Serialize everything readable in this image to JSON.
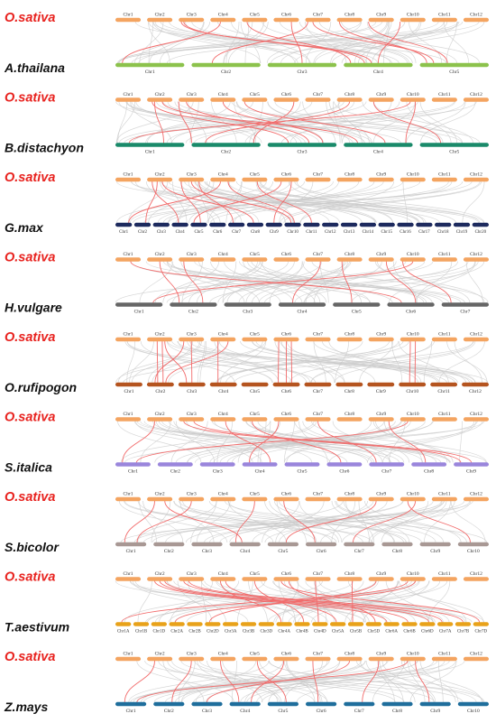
{
  "colors": {
    "reference_label": "#e8231f",
    "species_label": "#111111",
    "reference_bar": "#f4a460",
    "gray_links": "#c9c9c9",
    "red_links": "#f26a6a"
  },
  "panels": [
    {
      "top": {
        "label": "O.sativa",
        "chromosomes": [
          "Chr1",
          "Chr2",
          "Chr3",
          "Chr4",
          "Chr5",
          "Chr6",
          "Chr7",
          "Chr8",
          "Chr9",
          "Chr10",
          "Chr11",
          "Chr12"
        ]
      },
      "bottom": {
        "label": "A.thailana",
        "color": "#8cc24c",
        "chromosomes": [
          "Chr1",
          "Chr2",
          "Chr3",
          "Chr4",
          "Chr5"
        ]
      },
      "links": [
        [
          2,
          1,
          3,
          4
        ],
        [
          2,
          2,
          3,
          3
        ],
        [
          3,
          4,
          0,
          1
        ],
        [
          6,
          1,
          1,
          3
        ],
        [
          4,
          2,
          3,
          1
        ],
        [
          7,
          1,
          4,
          1
        ],
        [
          8,
          0,
          4,
          4
        ],
        [
          5,
          7,
          2,
          5
        ],
        [
          6,
          3,
          4,
          2
        ],
        [
          9,
          0,
          3,
          5
        ]
      ]
    },
    {
      "top": {
        "label": "O.sativa",
        "chromosomes": [
          "Chr1",
          "Chr2",
          "Chr3",
          "Chr4",
          "Chr5",
          "Chr6",
          "Chr7",
          "Chr8",
          "Chr9",
          "Chr10",
          "Chr11",
          "Chr12"
        ]
      },
      "bottom": {
        "label": "B.distachyon",
        "color": "#1a8a6a",
        "chromosomes": [
          "Chr1",
          "Chr2",
          "Chr3",
          "Chr4",
          "Chr5"
        ]
      },
      "links": [
        [
          1,
          2,
          2,
          3
        ],
        [
          1,
          6,
          3,
          2
        ],
        [
          2,
          0,
          1,
          0
        ],
        [
          3,
          5,
          2,
          8
        ],
        [
          4,
          1,
          3,
          6
        ],
        [
          5,
          8,
          1,
          9
        ],
        [
          9,
          4,
          0,
          2
        ],
        [
          9,
          6,
          3,
          9
        ],
        [
          2,
          3,
          2,
          6
        ],
        [
          8,
          2,
          4,
          3
        ],
        [
          7,
          5,
          1,
          2
        ],
        [
          1,
          3,
          0,
          7
        ]
      ]
    },
    {
      "top": {
        "label": "O.sativa",
        "chromosomes": [
          "Chr1",
          "Chr2",
          "Chr3",
          "Chr4",
          "Chr5",
          "Chr6",
          "Chr7",
          "Chr8",
          "Chr9",
          "Chr10",
          "Chr11",
          "Chr12"
        ]
      },
      "bottom": {
        "label": "G.max",
        "color": "#1d2a5e",
        "chromosomes": [
          "Chr1",
          "Chr2",
          "Chr3",
          "Chr4",
          "Chr5",
          "Chr6",
          "Chr7",
          "Chr8",
          "Chr9",
          "Chr10",
          "Chr11",
          "Chr12",
          "Chr13",
          "Chr14",
          "Chr15",
          "Chr16",
          "Chr17",
          "Chr18",
          "Chr19",
          "Chr20"
        ]
      },
      "links": [
        [
          1,
          2,
          3,
          4
        ],
        [
          1,
          6,
          7,
          4
        ],
        [
          2,
          1,
          4,
          6
        ],
        [
          2,
          5,
          9,
          4
        ],
        [
          3,
          4,
          0,
          8
        ],
        [
          3,
          7,
          9,
          6
        ],
        [
          5,
          3,
          4,
          2
        ],
        [
          5,
          7,
          8,
          5
        ],
        [
          4,
          6,
          10,
          5
        ],
        [
          1,
          4,
          1,
          7
        ],
        [
          2,
          8,
          6,
          3
        ]
      ]
    },
    {
      "top": {
        "label": "O.sativa",
        "chromosomes": [
          "Chr1",
          "Chr2",
          "Chr3",
          "Chr4",
          "Chr5",
          "Chr6",
          "Chr7",
          "Chr8",
          "Chr9",
          "Chr10",
          "Chr11",
          "Chr12"
        ]
      },
      "bottom": {
        "label": "H.vulgare",
        "color": "#666666",
        "chromosomes": [
          "Chr1",
          "Chr2",
          "Chr3",
          "Chr4",
          "Chr5",
          "Chr6",
          "Chr7"
        ]
      },
      "links": [
        [
          1,
          5,
          1,
          2
        ],
        [
          2,
          2,
          1,
          7
        ],
        [
          9,
          5,
          0,
          8
        ],
        [
          8,
          7,
          5,
          6
        ],
        [
          7,
          2,
          4,
          4
        ],
        [
          6,
          6,
          3,
          3
        ],
        [
          9,
          1,
          6,
          2
        ],
        [
          0,
          6,
          5,
          3
        ]
      ]
    },
    {
      "top": {
        "label": "O.sativa",
        "chromosomes": [
          "Chr1",
          "Chr2",
          "Chr3",
          "Chr4",
          "Chr5",
          "Chr6",
          "Chr7",
          "Chr8",
          "Chr9",
          "Chr10",
          "Chr11",
          "Chr12"
        ]
      },
      "bottom": {
        "label": "O.rufipogon",
        "color": "#b5541f",
        "chromosomes": [
          "Chr1",
          "Chr2",
          "Chr3",
          "Chr4",
          "Chr5",
          "Chr6",
          "Chr7",
          "Chr8",
          "Chr9",
          "Chr10",
          "Chr11",
          "Chr12"
        ]
      },
      "links": [
        [
          1,
          4,
          1,
          4
        ],
        [
          1,
          6,
          1,
          6
        ],
        [
          1,
          7,
          2,
          3
        ],
        [
          2,
          2,
          1,
          3
        ],
        [
          2,
          5,
          2,
          5
        ],
        [
          3,
          3,
          3,
          3
        ],
        [
          3,
          7,
          1,
          7
        ],
        [
          5,
          2,
          5,
          2
        ],
        [
          5,
          5,
          5,
          5
        ],
        [
          5,
          7,
          5,
          7
        ],
        [
          9,
          4,
          9,
          4
        ],
        [
          9,
          6,
          9,
          6
        ]
      ]
    },
    {
      "top": {
        "label": "O.sativa",
        "chromosomes": [
          "Chr1",
          "Chr2",
          "Chr3",
          "Chr4",
          "Chr5",
          "Chr6",
          "Chr7",
          "Chr8",
          "Chr9",
          "Chr10",
          "Chr11",
          "Chr12"
        ]
      },
      "bottom": {
        "label": "S.italica",
        "color": "#9a86dc",
        "chromosomes": [
          "Chr1",
          "Chr2",
          "Chr3",
          "Chr4",
          "Chr5",
          "Chr6",
          "Chr7",
          "Chr8",
          "Chr9"
        ]
      },
      "links": [
        [
          1,
          3,
          0,
          2
        ],
        [
          2,
          6,
          8,
          5
        ],
        [
          3,
          6,
          3,
          8
        ],
        [
          4,
          4,
          5,
          4
        ],
        [
          5,
          2,
          3,
          2
        ],
        [
          9,
          3,
          0,
          6
        ],
        [
          6,
          5,
          6,
          2
        ],
        [
          8,
          8,
          7,
          4
        ],
        [
          2,
          2,
          8,
          2
        ]
      ]
    },
    {
      "top": {
        "label": "O.sativa",
        "chromosomes": [
          "Chr1",
          "Chr2",
          "Chr3",
          "Chr4",
          "Chr5",
          "Chr6",
          "Chr7",
          "Chr8",
          "Chr9",
          "Chr10",
          "Chr11",
          "Chr12"
        ]
      },
      "bottom": {
        "label": "S.bicolor",
        "color": "#a89894",
        "chromosomes": [
          "Chr1",
          "Chr2",
          "Chr3",
          "Chr4",
          "Chr5",
          "Chr6",
          "Chr7",
          "Chr8",
          "Chr9",
          "Chr10"
        ]
      },
      "links": [
        [
          1,
          3,
          0,
          3
        ],
        [
          1,
          7,
          3,
          4
        ],
        [
          2,
          5,
          0,
          7
        ],
        [
          4,
          5,
          3,
          2
        ],
        [
          9,
          3,
          9,
          4
        ],
        [
          9,
          6,
          6,
          3
        ],
        [
          8,
          3,
          4,
          6
        ],
        [
          5,
          4,
          5,
          3
        ]
      ]
    },
    {
      "top": {
        "label": "O.sativa",
        "chromosomes": [
          "Chr1",
          "Chr2",
          "Chr3",
          "Chr4",
          "Chr5",
          "Chr6",
          "Chr7",
          "Chr8",
          "Chr9",
          "Chr10",
          "Chr11",
          "Chr12"
        ]
      },
      "bottom": {
        "label": "T.aestivum",
        "color": "#e8a21a",
        "chromosomes": [
          "Chr1A",
          "Chr1B",
          "Chr1D",
          "Chr2A",
          "Chr2B",
          "Chr2D",
          "Chr3A",
          "Chr3B",
          "Chr3D",
          "Chr4A",
          "Chr4B",
          "Chr4D",
          "Chr5A",
          "Chr5B",
          "Chr5D",
          "Chr6A",
          "Chr6B",
          "Chr6D",
          "Chr7A",
          "Chr7B",
          "Chr7D"
        ]
      },
      "links": [
        [
          1,
          3,
          15,
          2
        ],
        [
          1,
          5,
          16,
          4
        ],
        [
          1,
          7,
          17,
          6
        ],
        [
          2,
          2,
          18,
          3
        ],
        [
          2,
          4,
          19,
          5
        ],
        [
          3,
          4,
          9,
          3
        ],
        [
          3,
          6,
          12,
          4
        ],
        [
          5,
          3,
          20,
          4
        ],
        [
          5,
          6,
          14,
          6
        ],
        [
          9,
          3,
          0,
          4
        ],
        [
          9,
          6,
          3,
          4
        ],
        [
          6,
          4,
          11,
          4
        ],
        [
          7,
          6,
          13,
          3
        ],
        [
          4,
          5,
          10,
          6
        ],
        [
          8,
          3,
          5,
          3
        ]
      ]
    },
    {
      "top": {
        "label": "O.sativa",
        "chromosomes": [
          "Chr1",
          "Chr2",
          "Chr3",
          "Chr4",
          "Chr5",
          "Chr6",
          "Chr7",
          "Chr8",
          "Chr9",
          "Chr10",
          "Chr11",
          "Chr12"
        ]
      },
      "bottom": {
        "label": "Z.mays",
        "color": "#1f6e9c",
        "chromosomes": [
          "Chr1",
          "Chr2",
          "Chr3",
          "Chr4",
          "Chr5",
          "Chr6",
          "Chr7",
          "Chr8",
          "Chr9",
          "Chr10"
        ]
      },
      "links": [
        [
          1,
          3,
          0,
          3
        ],
        [
          2,
          5,
          1,
          6
        ],
        [
          3,
          4,
          3,
          3
        ],
        [
          4,
          6,
          4,
          6
        ],
        [
          5,
          4,
          3,
          7
        ],
        [
          6,
          3,
          5,
          4
        ],
        [
          9,
          3,
          0,
          7
        ],
        [
          9,
          6,
          8,
          3
        ],
        [
          8,
          4,
          6,
          6
        ],
        [
          7,
          5,
          2,
          5
        ]
      ]
    }
  ]
}
